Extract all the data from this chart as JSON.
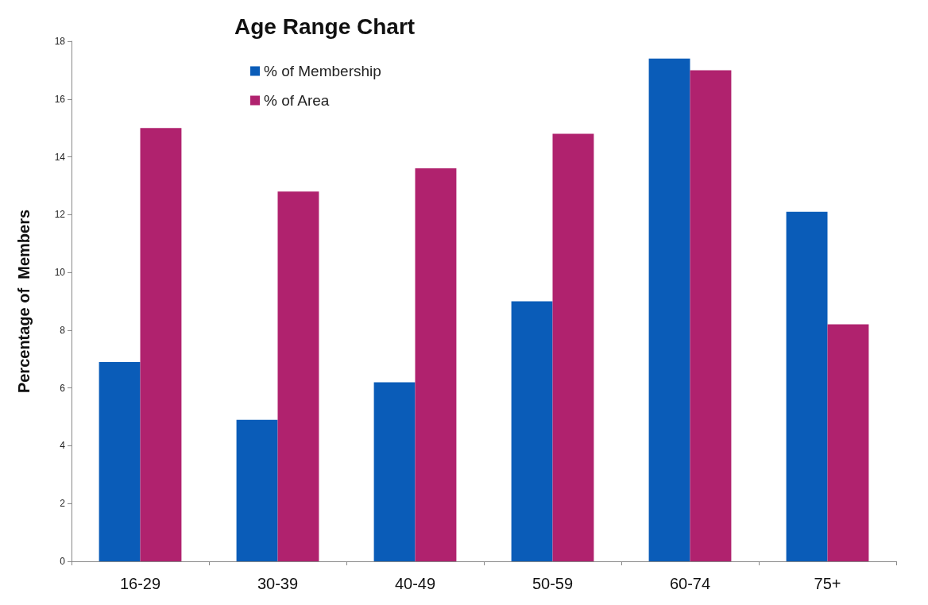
{
  "chart_data": {
    "type": "bar",
    "title": "Age Range Chart",
    "ylabel": "Percentage of  Members",
    "categories": [
      "16-29",
      "30-39",
      "40-49",
      "50-59",
      "60-74",
      "75+"
    ],
    "series": [
      {
        "name": "% of Membership",
        "color": "#0a5cb8",
        "values": [
          6.9,
          4.9,
          6.2,
          9.0,
          17.4,
          12.1
        ]
      },
      {
        "name": "% of Area",
        "color": "#b0226e",
        "values": [
          15.0,
          12.8,
          13.6,
          14.8,
          17.0,
          8.2
        ]
      }
    ],
    "ylim": [
      0,
      18
    ],
    "yticks": [
      0,
      2,
      4,
      6,
      8,
      10,
      12,
      14,
      16,
      18
    ],
    "grid": false,
    "legend": "top"
  }
}
